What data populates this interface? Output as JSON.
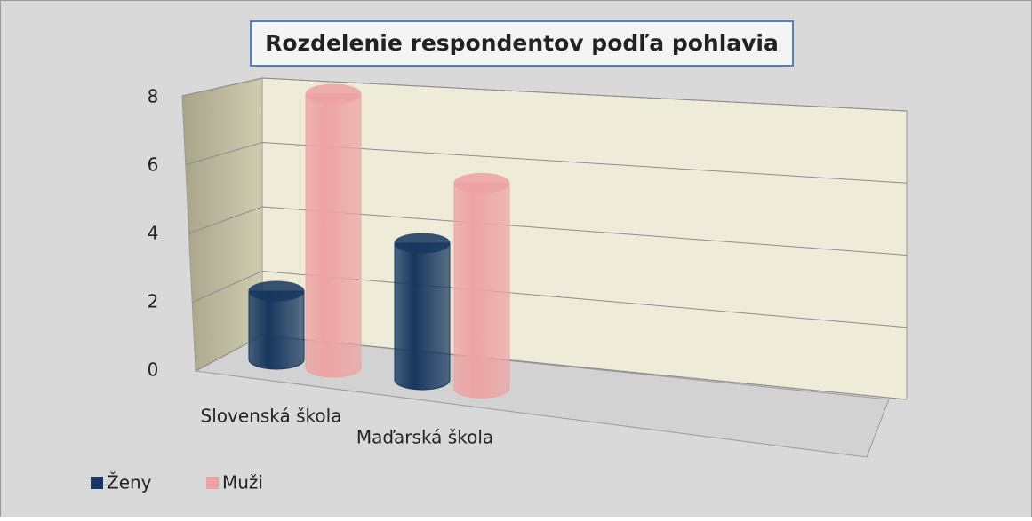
{
  "chart_data": {
    "type": "bar3d_cylinder",
    "title": "Rozdelenie respondentov podľa pohlavia",
    "categories": [
      "Slovenská škola",
      "Maďarská škola"
    ],
    "series": [
      {
        "name": "Ženy",
        "color": "#17375e",
        "values": [
          2,
          4
        ]
      },
      {
        "name": "Muži",
        "color": "#eda3a3",
        "values": [
          8,
          6
        ]
      }
    ],
    "ylim": [
      0,
      8
    ],
    "yticks": [
      0,
      2,
      4,
      6,
      8
    ],
    "grid": true,
    "legend": "bottom-left"
  }
}
